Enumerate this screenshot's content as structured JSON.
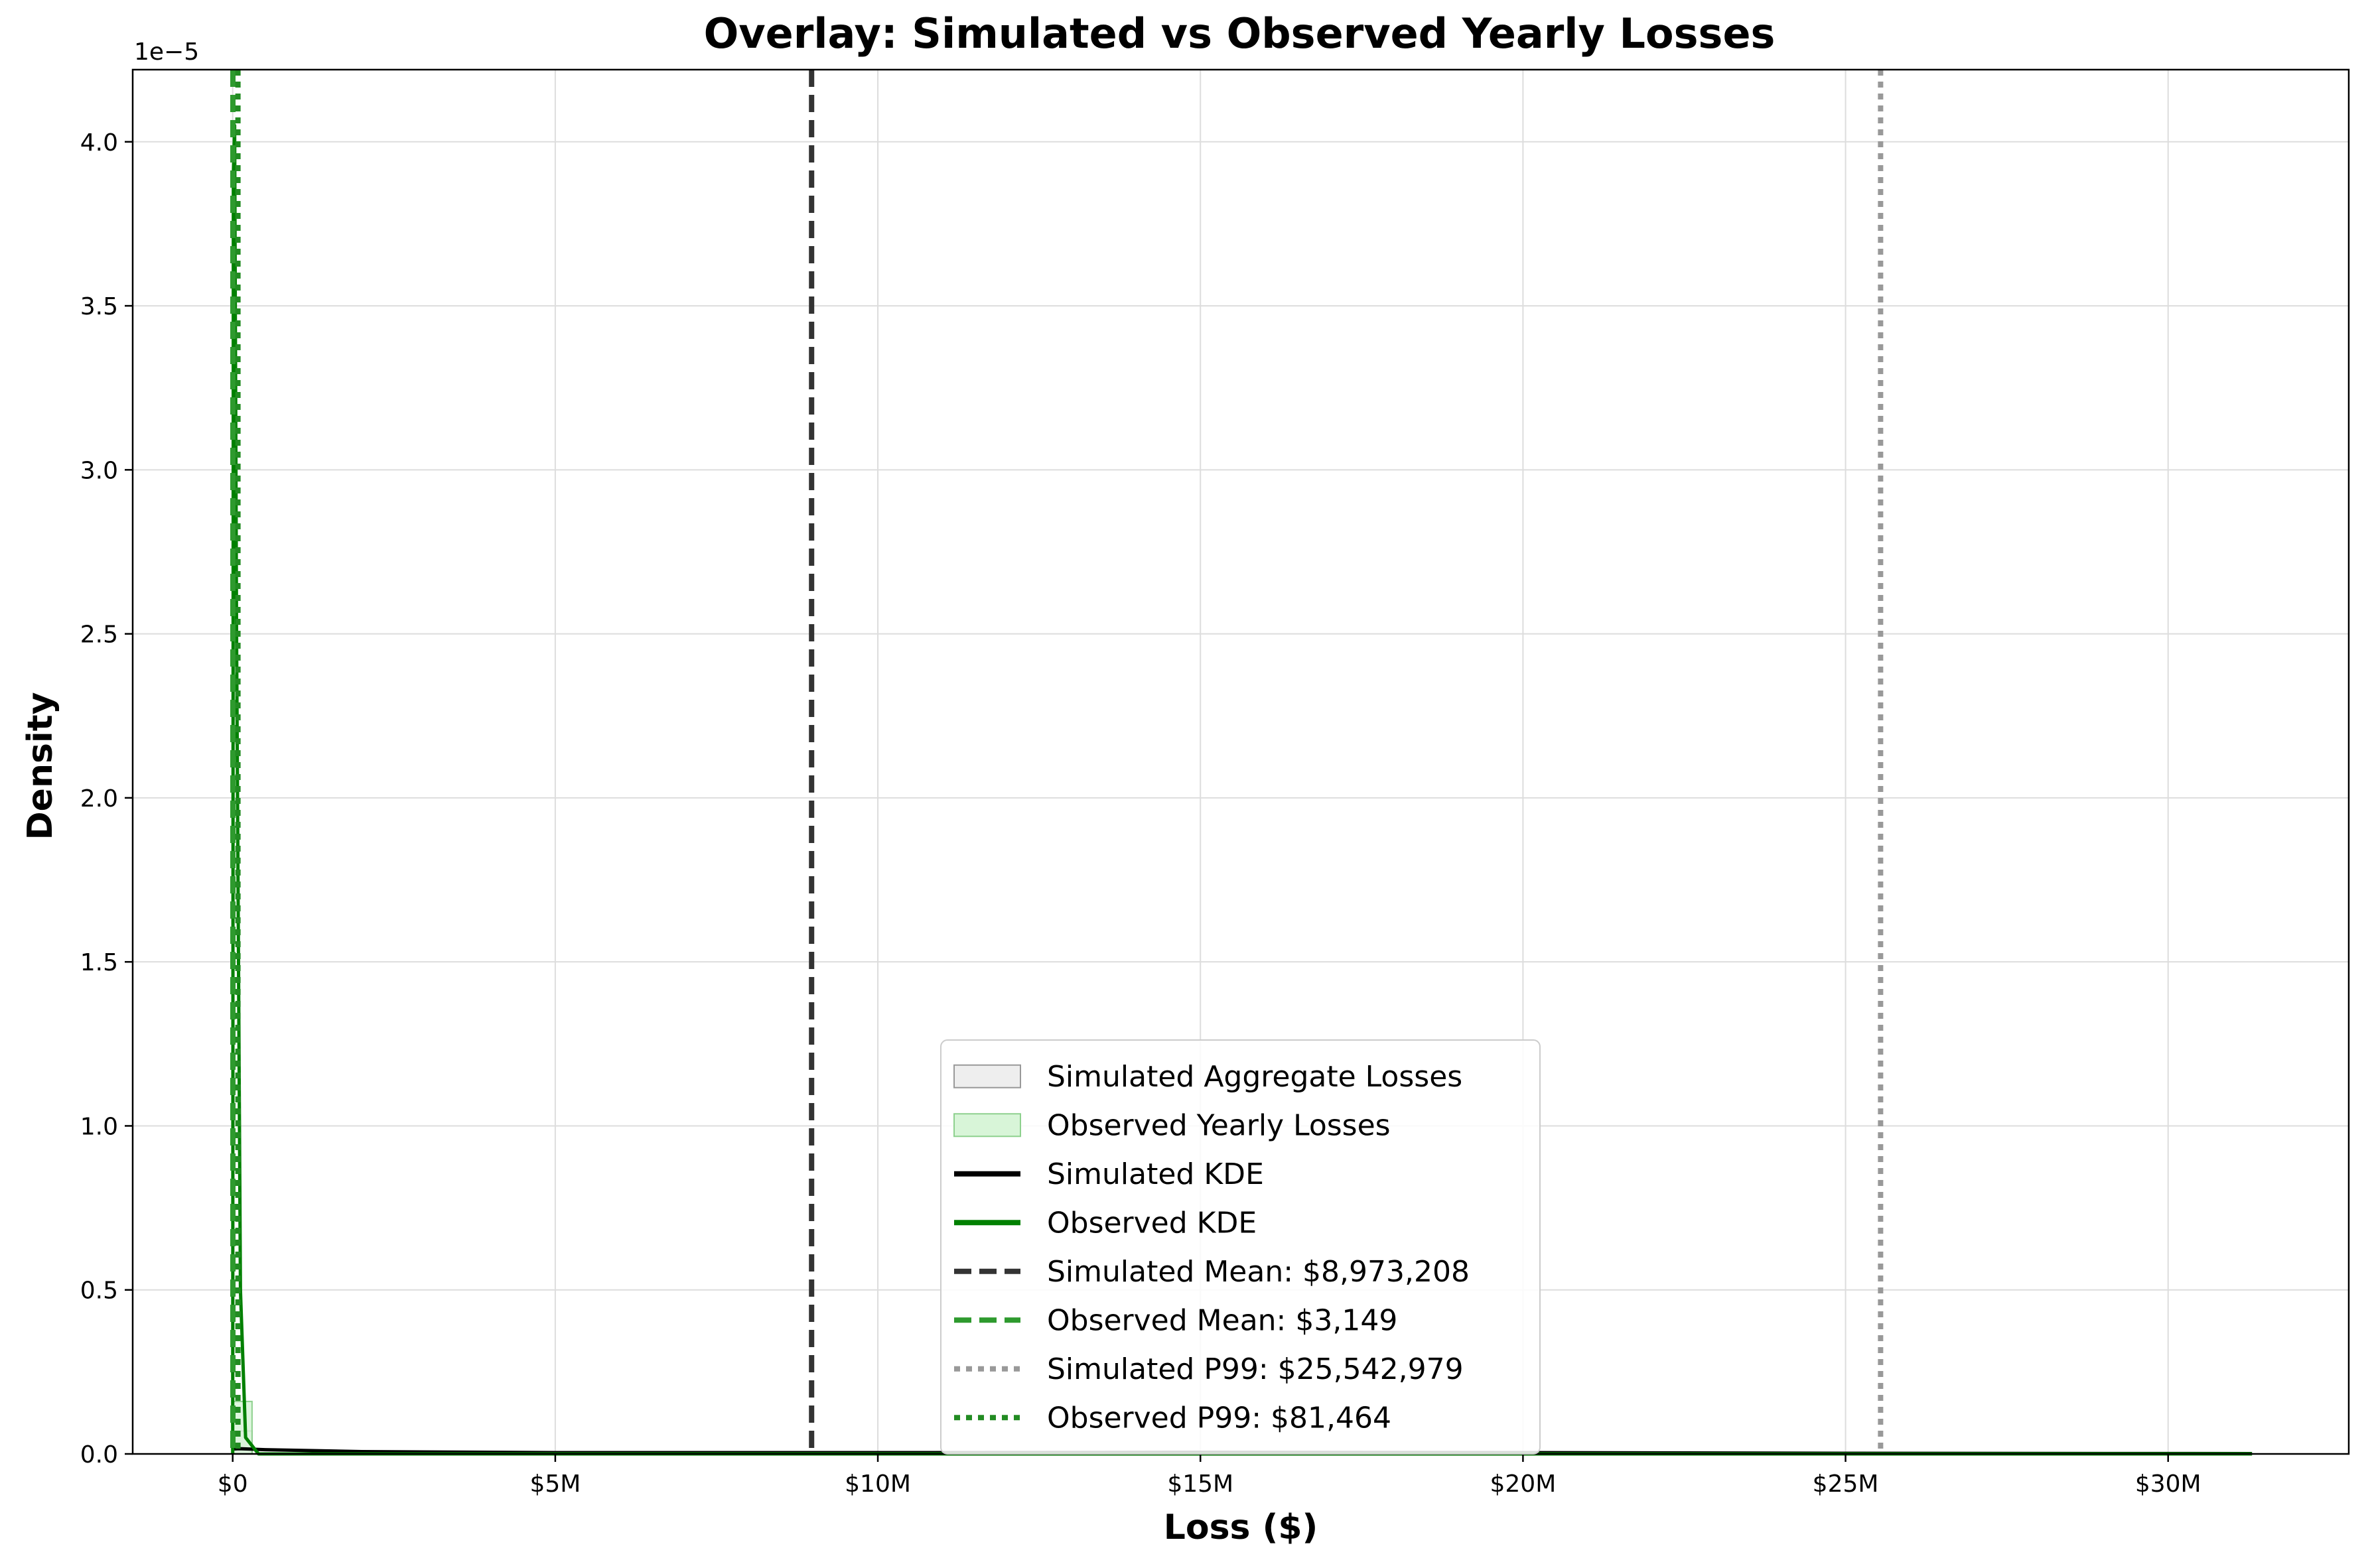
{
  "chart_data": {
    "type": "histogram+kde",
    "title": "Overlay: Simulated vs Observed Yearly Losses",
    "xlabel": "Loss ($)",
    "ylabel": "Density",
    "y_offset_text": "1e−5",
    "xlim": [
      -1550000,
      32800000
    ],
    "ylim": [
      0,
      4.22e-05
    ],
    "x_ticks": [
      {
        "value": 0,
        "label": "$0"
      },
      {
        "value": 5000000,
        "label": "$5M"
      },
      {
        "value": 10000000,
        "label": "$10M"
      },
      {
        "value": 15000000,
        "label": "$15M"
      },
      {
        "value": 20000000,
        "label": "$20M"
      },
      {
        "value": 25000000,
        "label": "$25M"
      },
      {
        "value": 30000000,
        "label": "$30M"
      }
    ],
    "y_ticks": [
      {
        "value": 0.0,
        "label": "0.0"
      },
      {
        "value": 0.5,
        "label": "0.5"
      },
      {
        "value": 1.0,
        "label": "1.0"
      },
      {
        "value": 1.5,
        "label": "1.5"
      },
      {
        "value": 2.0,
        "label": "2.0"
      },
      {
        "value": 2.5,
        "label": "2.5"
      },
      {
        "value": 3.0,
        "label": "3.0"
      },
      {
        "value": 3.5,
        "label": "3.5"
      },
      {
        "value": 4.0,
        "label": "4.0"
      }
    ],
    "grid": true,
    "legend_position": "lower center",
    "series": [
      {
        "name": "Simulated Aggregate Losses",
        "kind": "histogram",
        "color": "#eeeeee",
        "edge": "#999999",
        "bins": [
          {
            "x0": 0,
            "x1": 300000,
            "density": 7e-07
          }
        ]
      },
      {
        "name": "Observed Yearly Losses",
        "kind": "histogram",
        "color": "#d8f5d8",
        "edge": "#8ed18e",
        "bins": [
          {
            "x0": 0,
            "x1": 300000,
            "density": 1.6e-06
          },
          {
            "x0": 300000,
            "x1": 600000,
            "density": 0.0
          }
        ]
      },
      {
        "name": "Simulated KDE",
        "kind": "line",
        "color": "#000000",
        "x": [
          0,
          100000,
          500000,
          2000000,
          5000000,
          10000000,
          15000000,
          20000000,
          25000000,
          31300000
        ],
        "y": [
          1.5e-07,
          1.6e-07,
          1.3e-07,
          7e-08,
          4e-08,
          4e-08,
          5e-08,
          4e-08,
          2e-08,
          1e-08
        ]
      },
      {
        "name": "Observed KDE",
        "kind": "line",
        "color": "#008000",
        "x": [
          0,
          10000,
          30000,
          60000,
          120000,
          200000,
          400000,
          1000000,
          31300000
        ],
        "y": [
          0.0,
          3.9e-05,
          4.05e-05,
          2.5e-05,
          5e-06,
          5e-07,
          0.0,
          0.0,
          0.0
        ]
      },
      {
        "name": "Simulated Mean: $8,973,208",
        "kind": "vline",
        "value": 8973208,
        "color": "#333333",
        "style": "dashed"
      },
      {
        "name": "Observed Mean: $3,149",
        "kind": "vline",
        "value": 3149,
        "color": "#2e9a2e",
        "style": "dashed"
      },
      {
        "name": "Simulated P99: $25,542,979",
        "kind": "vline",
        "value": 25542979,
        "color": "#999999",
        "style": "dotted"
      },
      {
        "name": "Observed P99: $81,464",
        "kind": "vline",
        "value": 81464,
        "color": "#228b22",
        "style": "dotted"
      }
    ]
  }
}
